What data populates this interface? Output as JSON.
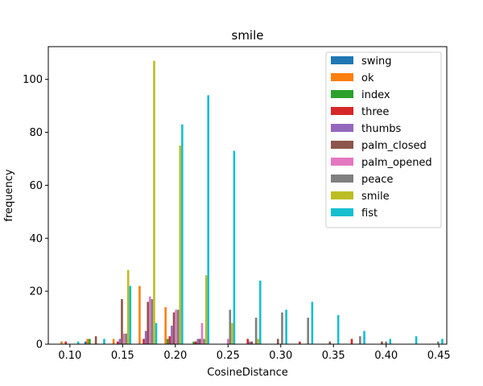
{
  "chart_data": {
    "type": "bar",
    "title": "smile",
    "xlabel": "CosineDistance",
    "ylabel": "frequency",
    "xlim": [
      0.0795,
      0.4575
    ],
    "ylim": [
      0,
      112.35
    ],
    "xticks": [
      0.1,
      0.15,
      0.2,
      0.25,
      0.3,
      0.35,
      0.4,
      0.45
    ],
    "xtick_labels": [
      "0.10",
      "0.15",
      "0.20",
      "0.25",
      "0.30",
      "0.35",
      "0.40",
      "0.45"
    ],
    "yticks": [
      0,
      20,
      40,
      60,
      80,
      100
    ],
    "ytick_labels": [
      "0",
      "20",
      "40",
      "60",
      "80",
      "100"
    ],
    "bin_edges": [
      0.0867,
      0.1113,
      0.136,
      0.1607,
      0.1853,
      0.21,
      0.2347,
      0.2593,
      0.284,
      0.3087,
      0.3333,
      0.358,
      0.3827,
      0.4073,
      0.432,
      0.4567
    ],
    "legend_position": "upper right",
    "grid": false,
    "series": [
      {
        "name": "swing",
        "color": "#1f77b4",
        "values": [
          0,
          1,
          0,
          0,
          0,
          0,
          0,
          0,
          0,
          0,
          0,
          0,
          0,
          0,
          0
        ]
      },
      {
        "name": "ok",
        "color": "#ff7f0e",
        "values": [
          1,
          2,
          2,
          22,
          14,
          0,
          0,
          0,
          0,
          0,
          0,
          0,
          0,
          0,
          0
        ]
      },
      {
        "name": "index",
        "color": "#2ca02c",
        "values": [
          0,
          2,
          0,
          0,
          2,
          1,
          0,
          0,
          0,
          0,
          0,
          0,
          0,
          0,
          0
        ]
      },
      {
        "name": "three",
        "color": "#d62728",
        "values": [
          1,
          0,
          1,
          2,
          3,
          1,
          0,
          2,
          0,
          1,
          0,
          2,
          0,
          0,
          0
        ]
      },
      {
        "name": "thumbs",
        "color": "#9467bd",
        "values": [
          0,
          0,
          2,
          5,
          7,
          2,
          0,
          1,
          0,
          0,
          0,
          0,
          0,
          0,
          0
        ]
      },
      {
        "name": "palm_closed",
        "color": "#8c564b",
        "values": [
          0,
          3,
          17,
          16,
          12,
          2,
          0,
          1,
          2,
          0,
          1,
          0,
          1,
          0,
          0
        ]
      },
      {
        "name": "palm_opened",
        "color": "#e377c2",
        "values": [
          0,
          0,
          4,
          18,
          13,
          8,
          2,
          0,
          0,
          0,
          0,
          0,
          0,
          0,
          0
        ]
      },
      {
        "name": "peace",
        "color": "#7f7f7f",
        "values": [
          0,
          0,
          4,
          17,
          13,
          2,
          13,
          10,
          12,
          10,
          0,
          3,
          1,
          0,
          1
        ]
      },
      {
        "name": "smile",
        "color": "#bcbd22",
        "values": [
          0,
          0,
          28,
          107,
          75,
          26,
          8,
          2,
          0,
          0,
          0,
          0,
          0,
          0,
          0
        ]
      },
      {
        "name": "fist",
        "color": "#17becf",
        "values": [
          1,
          2,
          22,
          8,
          83,
          94,
          73,
          24,
          13,
          16,
          11,
          5,
          2,
          3,
          2
        ]
      }
    ]
  }
}
